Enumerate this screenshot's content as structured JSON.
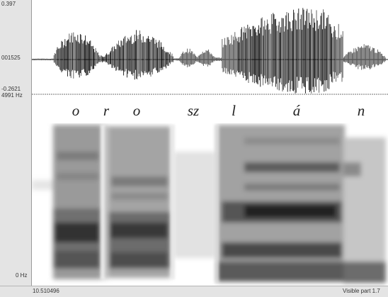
{
  "waveform": {
    "top_label": "0.397",
    "mid_label": "001525",
    "bottom_label": "-0.2621"
  },
  "spectrogram": {
    "top_label": "4991 Hz",
    "bottom_label": "0 Hz"
  },
  "phonemes": [
    "o",
    "r",
    "o",
    "sz",
    "l",
    "á",
    "n"
  ],
  "status": {
    "time": "10.510496",
    "visible": "Visible part 1.7"
  }
}
